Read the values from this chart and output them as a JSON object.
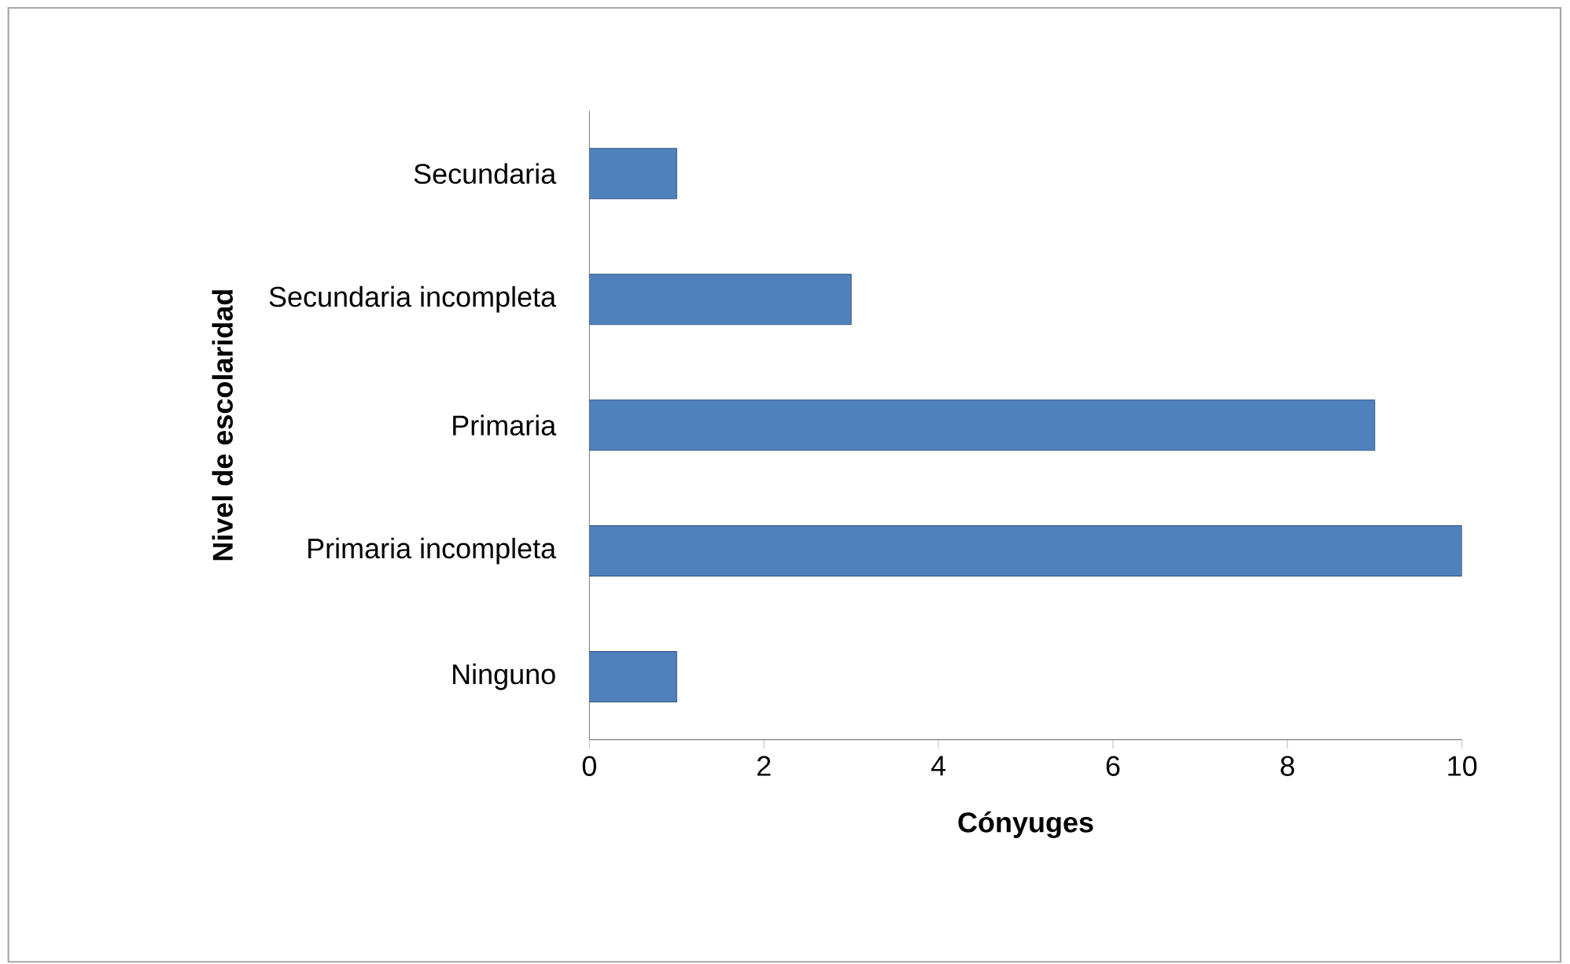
{
  "chart_data": {
    "type": "bar",
    "orientation": "horizontal",
    "xlabel": "Cónyuges",
    "ylabel": "Nivel de escolaridad",
    "categories": [
      "Secundaria",
      "Secundaria incompleta",
      "Primaria",
      "Primaria incompleta",
      "Ninguno"
    ],
    "values": [
      1,
      3,
      9,
      10,
      1
    ],
    "color": "#4f81bd",
    "xlim": [
      0,
      10
    ],
    "xticks": [
      0,
      2,
      4,
      6,
      8,
      10
    ],
    "grid": false
  }
}
